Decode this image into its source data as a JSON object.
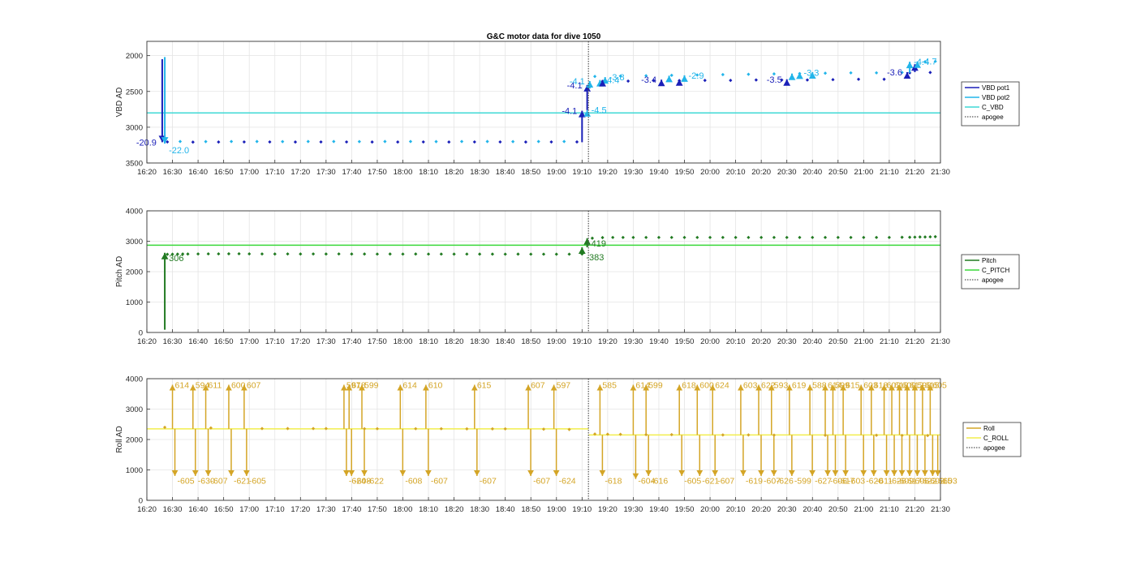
{
  "chart_data": {
    "title": "G&C motor data for dive 1050",
    "time_ticks": [
      "16:20",
      "16:30",
      "16:40",
      "16:50",
      "17:00",
      "17:10",
      "17:20",
      "17:30",
      "17:40",
      "17:50",
      "18:00",
      "18:10",
      "18:20",
      "18:30",
      "18:40",
      "18:50",
      "19:00",
      "19:10",
      "19:20",
      "19:30",
      "19:40",
      "19:50",
      "20:00",
      "20:10",
      "20:20",
      "20:30",
      "20:40",
      "20:50",
      "21:00",
      "21:10",
      "21:20",
      "21:30"
    ],
    "xlim": [
      "16:20",
      "21:30"
    ],
    "apogee_time": "19:12.5",
    "grid": true,
    "legend_placement": "outside-right",
    "panels": [
      {
        "id": "vbd",
        "type": "scatter",
        "ylabel": "VBD AD",
        "ylim": [
          1800,
          3500
        ],
        "y_reversed": true,
        "yticks": [
          2000,
          2500,
          3000,
          3500
        ],
        "legend": [
          "VBD pot1",
          "VBD pot2",
          "C_VBD",
          "apogee"
        ],
        "colors": {
          "pot1": "#1a1fb8",
          "pot2": "#22b5ea",
          "c_line": "#3fd9d6",
          "apogee": "#555555"
        },
        "c_value": 2800,
        "series": [
          {
            "name": "VBD pot1",
            "times": [
              "16:28",
              "16:38",
              "16:48",
              "16:58",
              "17:08",
              "17:18",
              "17:28",
              "17:38",
              "17:48",
              "17:58",
              "18:08",
              "18:18",
              "18:28",
              "18:38",
              "18:48",
              "18:58",
              "19:08",
              "19:18",
              "19:28",
              "19:38",
              "19:48",
              "19:58",
              "20:08",
              "20:18",
              "20:28",
              "20:38",
              "20:48",
              "20:58",
              "21:08",
              "21:18",
              "21:26"
            ],
            "values": [
              3205,
              3208,
              3207,
              3206,
              3206,
              3207,
              3206,
              3206,
              3207,
              3207,
              3206,
              3207,
              3206,
              3206,
              3207,
              3206,
              3205,
              2360,
              2355,
              2350,
              2350,
              2345,
              2345,
              2340,
              2340,
              2340,
              2335,
              2330,
              2330,
              2240,
              2235
            ]
          },
          {
            "name": "VBD pot2",
            "times": [
              "16:33",
              "16:43",
              "16:53",
              "17:03",
              "17:13",
              "17:23",
              "17:33",
              "17:43",
              "17:53",
              "18:03",
              "18:13",
              "18:23",
              "18:33",
              "18:43",
              "18:53",
              "19:03",
              "19:15",
              "19:25",
              "19:35",
              "19:45",
              "19:55",
              "20:05",
              "20:15",
              "20:25",
              "20:35",
              "20:45",
              "20:55",
              "21:05",
              "21:15",
              "21:24",
              "21:28"
            ],
            "values": [
              3200,
              3201,
              3200,
              3200,
              3201,
              3200,
              3200,
              3201,
              3200,
              3200,
              3201,
              3200,
              3200,
              3201,
              3200,
              3200,
              2290,
              2285,
              2280,
              2275,
              2270,
              2265,
              2260,
              2255,
              2250,
              2245,
              2240,
              2240,
              2235,
              2085,
              2080
            ]
          }
        ],
        "moves": [
          {
            "series": "VBD pot1",
            "time": "16:26",
            "from": 2050,
            "to": 3210,
            "label": "-20.9"
          },
          {
            "series": "VBD pot2",
            "time": "16:27",
            "from": 2020,
            "to": 3230,
            "label": "-22.0"
          },
          {
            "series": "VBD pot1",
            "time": "19:10",
            "from": 3210,
            "to": 2770,
            "label": "-4.1"
          },
          {
            "series": "VBD pot2",
            "time": "19:12",
            "from": 2770,
            "to": 2760,
            "label": "-4.5"
          },
          {
            "series": "VBD pot1",
            "time": "19:12",
            "from": 2760,
            "to": 2410,
            "label": "-4.1"
          },
          {
            "series": "VBD pot2",
            "time": "19:13",
            "from": 2460,
            "to": 2355,
            "label": "-4.1"
          },
          {
            "series": "VBD pot2",
            "time": "19:17",
            "from": 2390,
            "to": 2340,
            "label": "-4.4"
          },
          {
            "series": "VBD pot2",
            "time": "19:19",
            "from": 2350,
            "to": 2300,
            "label": "-3.8"
          },
          {
            "series": "VBD pot1",
            "time": "19:18",
            "from": 2380,
            "to": 2340,
            "label": ""
          },
          {
            "series": "VBD pot1",
            "time": "19:41",
            "from": 2390,
            "to": 2335,
            "label": "-3.4"
          },
          {
            "series": "VBD pot2",
            "time": "19:44",
            "from": 2335,
            "to": 2280,
            "label": ""
          },
          {
            "series": "VBD pot1",
            "time": "19:48",
            "from": 2380,
            "to": 2330,
            "label": ""
          },
          {
            "series": "VBD pot2",
            "time": "19:50",
            "from": 2330,
            "to": 2275,
            "label": "-2.9"
          },
          {
            "series": "VBD pot1",
            "time": "20:30",
            "from": 2380,
            "to": 2330,
            "label": "-3.5"
          },
          {
            "series": "VBD pot2",
            "time": "20:32",
            "from": 2330,
            "to": 2250,
            "label": ""
          },
          {
            "series": "VBD pot2",
            "time": "20:35",
            "from": 2300,
            "to": 2235,
            "label": "-3.3"
          },
          {
            "series": "VBD pot2",
            "time": "20:40",
            "from": 2280,
            "to": 2230,
            "label": ""
          },
          {
            "series": "VBD pot1",
            "time": "21:17",
            "from": 2290,
            "to": 2230,
            "label": "-3.6"
          },
          {
            "series": "VBD pot2",
            "time": "21:18",
            "from": 2240,
            "to": 2085,
            "label": "-4.4"
          },
          {
            "series": "VBD pot1",
            "time": "21:20",
            "from": 2230,
            "to": 2120,
            "label": ""
          },
          {
            "series": "VBD pot2",
            "time": "21:21",
            "from": 2110,
            "to": 2080,
            "label": "-4.7"
          }
        ]
      },
      {
        "id": "pitch",
        "type": "scatter",
        "ylabel": "Pitch AD",
        "ylim": [
          0,
          4000
        ],
        "y_reversed": false,
        "yticks": [
          0,
          1000,
          2000,
          3000,
          4000
        ],
        "legend": [
          "Pitch",
          "C_PITCH",
          "apogee"
        ],
        "colors": {
          "series": "#217a21",
          "c_line": "#3ad83a",
          "apogee": "#555555"
        },
        "c_value": 2870,
        "series": [
          {
            "name": "Pitch",
            "times": [
              "16:28",
              "16:30",
              "16:32",
              "16:34",
              "16:36",
              "16:40",
              "16:44",
              "16:48",
              "16:52",
              "16:56",
              "17:00",
              "17:05",
              "17:10",
              "17:15",
              "17:20",
              "17:25",
              "17:30",
              "17:35",
              "17:40",
              "17:45",
              "17:50",
              "17:55",
              "18:00",
              "18:05",
              "18:10",
              "18:15",
              "18:20",
              "18:25",
              "18:30",
              "18:35",
              "18:40",
              "18:45",
              "18:50",
              "18:55",
              "19:00",
              "19:05",
              "19:10",
              "19:14",
              "19:18",
              "19:22",
              "19:26",
              "19:30",
              "19:35",
              "19:40",
              "19:45",
              "19:50",
              "19:55",
              "20:00",
              "20:05",
              "20:10",
              "20:15",
              "20:20",
              "20:25",
              "20:30",
              "20:35",
              "20:40",
              "20:45",
              "20:50",
              "20:55",
              "21:00",
              "21:05",
              "21:10",
              "21:15",
              "21:18",
              "21:20",
              "21:22",
              "21:24",
              "21:26",
              "21:28"
            ],
            "values": [
              2570,
              2575,
              2578,
              2580,
              2580,
              2582,
              2585,
              2585,
              2587,
              2588,
              2585,
              2582,
              2580,
              2582,
              2580,
              2582,
              2580,
              2582,
              2580,
              2580,
              2578,
              2580,
              2578,
              2580,
              2578,
              2578,
              2576,
              2578,
              2576,
              2576,
              2575,
              2576,
              2575,
              2575,
              2574,
              2575,
              2580,
              3100,
              3120,
              3125,
              3125,
              3125,
              3125,
              3125,
              3125,
              3125,
              3125,
              3125,
              3125,
              3125,
              3125,
              3125,
              3125,
              3125,
              3125,
              3125,
              3125,
              3125,
              3125,
              3125,
              3125,
              3125,
              3130,
              3130,
              3135,
              3140,
              3140,
              3145,
              3150
            ]
          }
        ],
        "moves": [
          {
            "time": "16:27",
            "from": 90,
            "to": 2620,
            "label": "306"
          },
          {
            "time": "19:10",
            "from": 2580,
            "to": 2800,
            "label": "-383"
          },
          {
            "time": "19:12",
            "from": 2800,
            "to": 3100,
            "label": "419"
          }
        ]
      },
      {
        "id": "roll",
        "type": "scatter",
        "ylabel": "Roll AD",
        "ylim": [
          0,
          4000
        ],
        "y_reversed": false,
        "yticks": [
          0,
          1000,
          2000,
          3000,
          4000
        ],
        "legend": [
          "Roll",
          "C_ROLL",
          "apogee"
        ],
        "colors": {
          "series": "#d4a526",
          "c_line": "#f2ee4d",
          "apogee": "#555555"
        },
        "c_value": 2350,
        "c_value_after_apogee": 2150,
        "series": [
          {
            "name": "Roll",
            "times": [
              "16:27",
              "16:45",
              "17:05",
              "17:15",
              "17:25",
              "17:30",
              "17:45",
              "17:50",
              "18:05",
              "18:15",
              "18:25",
              "18:35",
              "18:40",
              "18:55",
              "19:05",
              "19:15",
              "19:20",
              "19:25",
              "19:35",
              "19:45",
              "20:05",
              "20:15",
              "20:25",
              "20:45",
              "21:05",
              "21:15",
              "21:25"
            ],
            "values": [
              2400,
              2380,
              2360,
              2360,
              2360,
              2360,
              2355,
              2355,
              2355,
              2355,
              2350,
              2350,
              2350,
              2340,
              2330,
              2180,
              2175,
              2170,
              2160,
              2160,
              2150,
              2150,
              2145,
              2140,
              2140,
              2135,
              2130
            ]
          }
        ],
        "swings": [
          {
            "time": "16:30",
            "down": "-605",
            "up": "614"
          },
          {
            "time": "16:38",
            "up": "594",
            "down": "-630"
          },
          {
            "time": "16:43",
            "down": "-607",
            "up": "611"
          },
          {
            "time": "16:52",
            "up": "600",
            "down": "-621"
          },
          {
            "time": "16:58",
            "down": "-605",
            "up": "607"
          },
          {
            "time": "17:37",
            "up": "597",
            "down": "-624"
          },
          {
            "time": "17:39",
            "down": "-608",
            "up": "618"
          },
          {
            "time": "17:44",
            "up": "599",
            "down": "-622"
          },
          {
            "time": "17:59",
            "down": "-608",
            "up": "614"
          },
          {
            "time": "18:09",
            "down": "-607",
            "up": "610"
          },
          {
            "time": "18:28",
            "down": "-607",
            "up": "615"
          },
          {
            "time": "18:49",
            "down": "-607",
            "up": "607"
          },
          {
            "time": "18:59",
            "up": "597",
            "down": "-624"
          },
          {
            "time": "19:17",
            "up": "585",
            "down": "-618"
          },
          {
            "time": "19:30",
            "down": "-604",
            "up": "614"
          },
          {
            "time": "19:35",
            "up": "599",
            "down": "-616"
          },
          {
            "time": "19:48",
            "down": "-605",
            "up": "618"
          },
          {
            "time": "19:55",
            "up": "600",
            "down": "-621"
          },
          {
            "time": "20:01",
            "down": "-607",
            "up": "624"
          },
          {
            "time": "20:12",
            "up": "603",
            "down": "-619"
          },
          {
            "time": "20:19",
            "down": "-607",
            "up": "622"
          },
          {
            "time": "20:24",
            "up": "593",
            "down": "-626"
          },
          {
            "time": "20:31",
            "down": "-599",
            "up": "619"
          },
          {
            "time": "20:39",
            "up": "588",
            "down": "-627"
          },
          {
            "time": "20:45",
            "down": "-606",
            "up": "614"
          },
          {
            "time": "20:48",
            "up": "599",
            "down": "-617"
          },
          {
            "time": "20:52",
            "down": "-603",
            "up": "615"
          },
          {
            "time": "20:59",
            "up": "603",
            "down": "-620"
          },
          {
            "time": "21:03",
            "down": "-611",
            "up": "618"
          },
          {
            "time": "21:08",
            "up": "602",
            "down": "-626"
          },
          {
            "time": "21:11",
            "down": "-609",
            "up": "618"
          },
          {
            "time": "21:14",
            "up": "600",
            "down": "-617"
          },
          {
            "time": "21:17",
            "down": "-606",
            "up": "612"
          },
          {
            "time": "21:20",
            "up": "598",
            "down": "-622"
          },
          {
            "time": "21:23",
            "down": "-603",
            "up": "615"
          },
          {
            "time": "21:26",
            "up": "605",
            "down": "-615"
          },
          {
            "time": "21:28",
            "down": "-603"
          }
        ]
      }
    ]
  }
}
